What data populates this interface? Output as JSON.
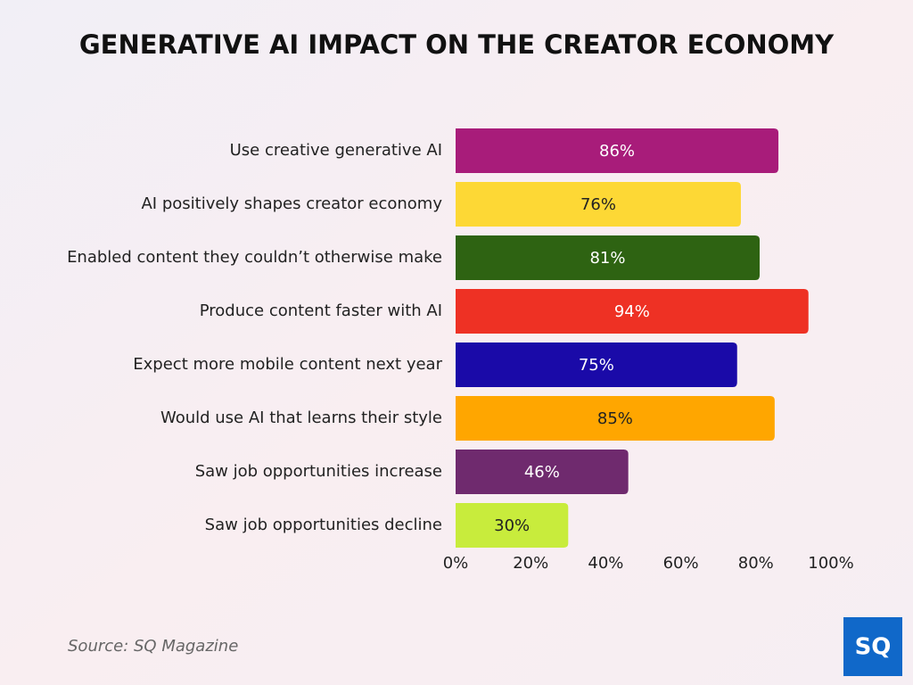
{
  "chart_data": {
    "type": "barh",
    "title": "GENERATIVE AI IMPACT ON THE CREATOR ECONOMY",
    "categories": [
      "Use creative generative AI",
      "AI positively shapes creator economy",
      "Enabled content they couldn’t otherwise make",
      "Produce content faster with AI",
      "Expect more mobile content next year",
      "Would use AI that learns their style",
      "Saw job opportunities increase",
      "Saw job opportunities decline"
    ],
    "values": [
      86,
      76,
      81,
      94,
      75,
      85,
      46,
      30
    ],
    "value_labels": [
      "86%",
      "76%",
      "81%",
      "94%",
      "75%",
      "85%",
      "46%",
      "30%"
    ],
    "colors": [
      "#a81c7a",
      "#fdd835",
      "#2e6312",
      "#ee3124",
      "#1a0aa8",
      "#ffa600",
      "#6f2a6e",
      "#c8ec3c"
    ],
    "xlim": [
      0,
      100
    ],
    "xticks": [
      {
        "value": 0,
        "label": "0%"
      },
      {
        "value": 20,
        "label": "20%"
      },
      {
        "value": 40,
        "label": "40%"
      },
      {
        "value": 60,
        "label": "60%"
      },
      {
        "value": 80,
        "label": "80%"
      },
      {
        "value": 100,
        "label": "100%"
      }
    ],
    "grid": false,
    "source": "Source: SQ Magazine",
    "logo": "SQ"
  }
}
